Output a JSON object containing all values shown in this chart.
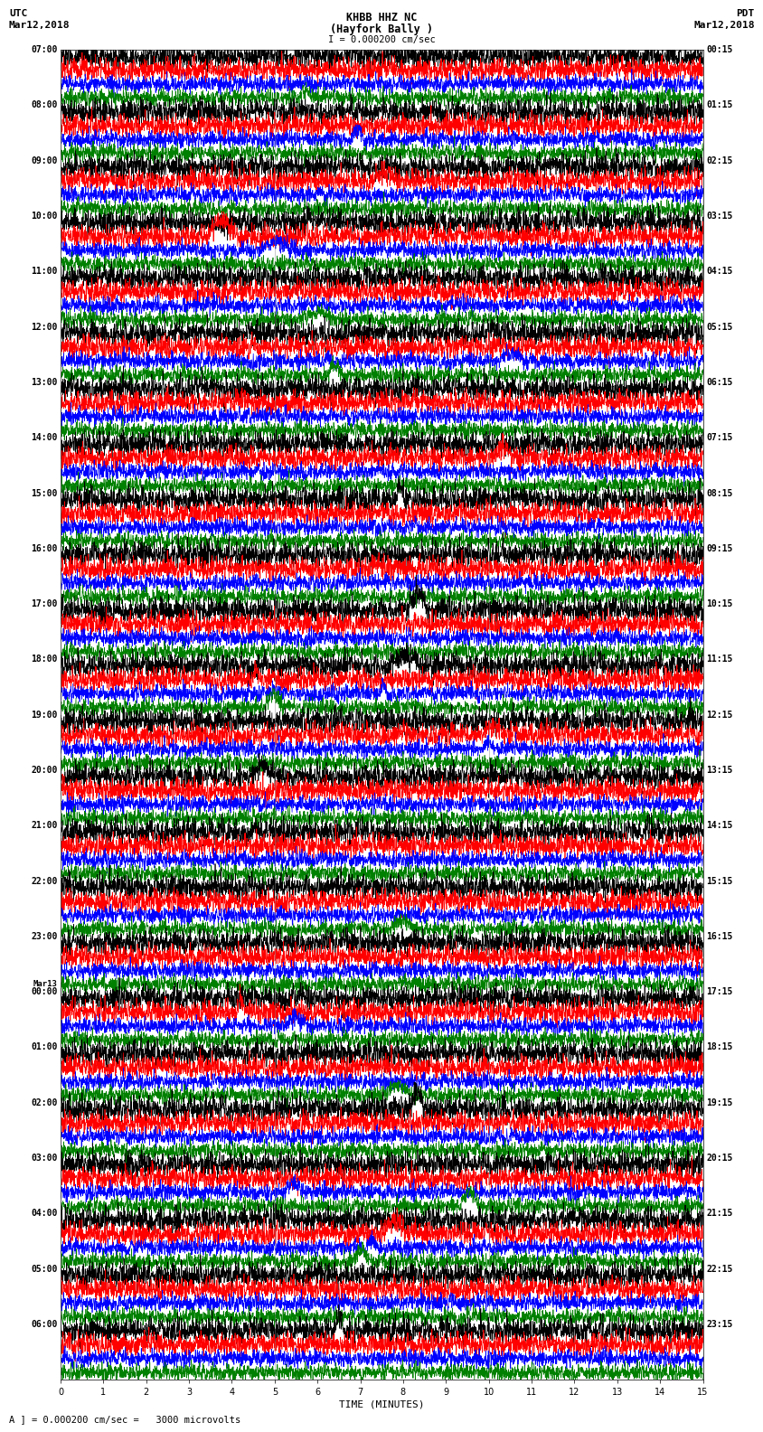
{
  "title_line1": "KHBB HHZ NC",
  "title_line2": "(Hayfork Bally )",
  "scale_text": "I = 0.000200 cm/sec",
  "left_header_line1": "UTC",
  "left_header_line2": "Mar12,2018",
  "right_header_line1": "PDT",
  "right_header_line2": "Mar12,2018",
  "bottom_label": "TIME (MINUTES)",
  "bottom_note": "A ] = 0.000200 cm/sec =   3000 microvolts",
  "xlabel_ticks": [
    0,
    1,
    2,
    3,
    4,
    5,
    6,
    7,
    8,
    9,
    10,
    11,
    12,
    13,
    14,
    15
  ],
  "utc_hour_labels": [
    "07:00",
    "08:00",
    "09:00",
    "10:00",
    "11:00",
    "12:00",
    "13:00",
    "14:00",
    "15:00",
    "16:00",
    "17:00",
    "18:00",
    "19:00",
    "20:00",
    "21:00",
    "22:00",
    "23:00",
    "00:00",
    "01:00",
    "02:00",
    "03:00",
    "04:00",
    "05:00",
    "06:00"
  ],
  "mar13_index": 17,
  "pdt_hour_labels": [
    "00:15",
    "01:15",
    "02:15",
    "03:15",
    "04:15",
    "05:15",
    "06:15",
    "07:15",
    "08:15",
    "09:15",
    "10:15",
    "11:15",
    "12:15",
    "13:15",
    "14:15",
    "15:15",
    "16:15",
    "17:15",
    "18:15",
    "19:15",
    "20:15",
    "21:15",
    "22:15",
    "23:15"
  ],
  "colors": [
    "black",
    "red",
    "blue",
    "green"
  ],
  "bg_color": "white",
  "line_width": 0.5,
  "amp_black": 0.42,
  "amp_red": 0.38,
  "amp_blue": 0.28,
  "amp_green": 0.28,
  "fig_width": 8.5,
  "fig_height": 16.13,
  "dpi": 100,
  "n_points": 3000,
  "vline_positions": [
    0,
    5,
    10,
    15
  ],
  "vline_color": "#888888",
  "vline_lw": 0.4,
  "label_fontsize": 7.0,
  "header_fontsize": 8.0,
  "title_fontsize": 8.5,
  "xlabel_fontsize": 8.0,
  "scale_fontsize": 7.5
}
